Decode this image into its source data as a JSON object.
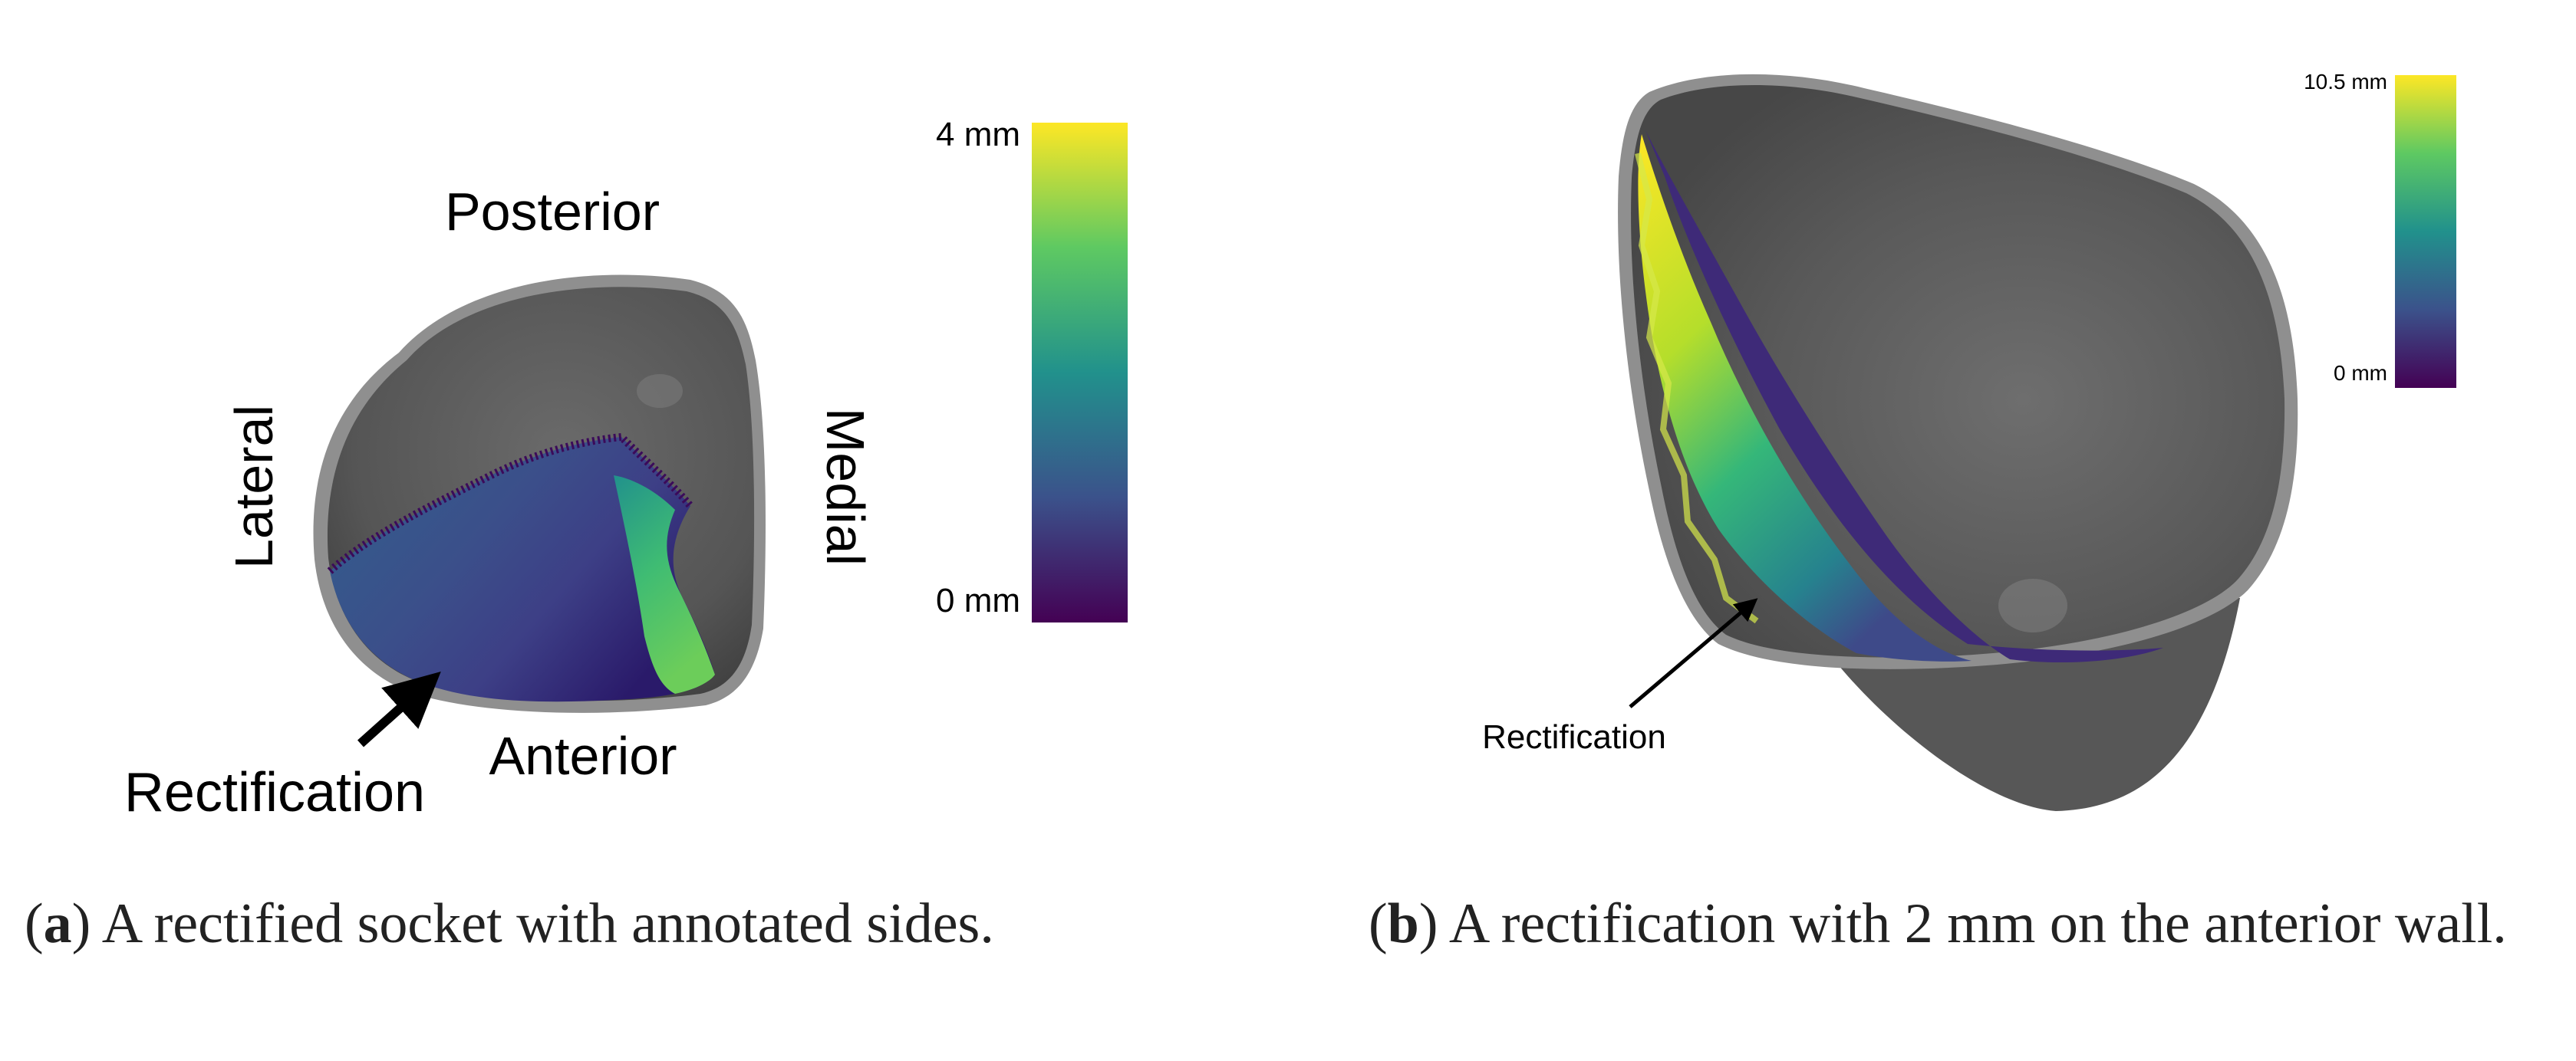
{
  "panel_a": {
    "labels": {
      "posterior": "Posterior",
      "lateral": "Lateral",
      "medial": "Medial",
      "anterior": "Anterior",
      "rectification": "Rectification"
    },
    "colorbar": {
      "max_label": "4 mm",
      "min_label": "0 mm",
      "colormap": "viridis"
    },
    "caption": {
      "letter": "a",
      "text": " A rectified socket with annotated sides."
    }
  },
  "panel_b": {
    "labels": {
      "rectification": "Rectification"
    },
    "colorbar": {
      "max_label": "10.5 mm",
      "min_label": "0 mm",
      "colormap": "viridis"
    },
    "caption": {
      "letter": "b",
      "text": " A rectification with 2 mm on the anterior wall."
    }
  },
  "colors": {
    "socket_gray": "#5a5a5a",
    "rim_gray": "#8f8f8f",
    "viridis_dark": "#440154",
    "viridis_blue": "#3b528b",
    "viridis_teal": "#21918c",
    "viridis_green": "#5ec962",
    "viridis_yellow": "#fde725"
  }
}
